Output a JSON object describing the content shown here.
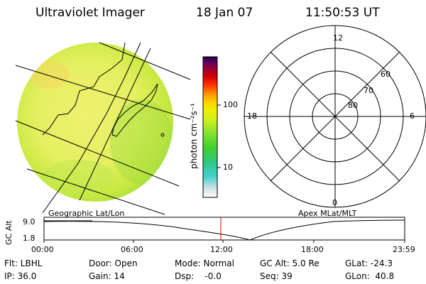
{
  "header": {
    "instrument": "Ultraviolet Imager",
    "date": "18 Jan 07",
    "time": "11:50:53 UT"
  },
  "colorbar": {
    "unit_label": "photon cm⁻²s⁻¹",
    "ticks": [
      {
        "label": "100",
        "value": 100
      },
      {
        "label": "10",
        "value": 10
      }
    ],
    "colors": [
      "#ffffff",
      "#c8e0e0",
      "#40d0d0",
      "#30c880",
      "#40d030",
      "#80e030",
      "#d0f020",
      "#f0f000",
      "#ffd000",
      "#ff9000",
      "#ff3000",
      "#d00000",
      "#a00030",
      "#600060",
      "#200040"
    ]
  },
  "geo_panel": {
    "label": "Geographic Lat/Lon"
  },
  "polar_panel": {
    "label": "Apex MLat/MLT",
    "mlt_labels": [
      {
        "text": "12",
        "pos": "top"
      },
      {
        "text": "18",
        "pos": "left"
      },
      {
        "text": "6",
        "pos": "right"
      },
      {
        "text": "0",
        "pos": "bottom"
      }
    ],
    "lat_labels": [
      "60",
      "70",
      "80"
    ]
  },
  "altitude_plot": {
    "ylabel": "GC Alt",
    "yticks": [
      "9.0",
      "1.8"
    ],
    "xticks": [
      "00:00",
      "06:00",
      "12:00",
      "18:00",
      "23:59"
    ],
    "current_time_marker": "11:50"
  },
  "info": {
    "row1": {
      "flt": "Flt: LBHL",
      "door": "Door: Open",
      "mode": "Mode: Normal",
      "gcalt": "GC Alt: 5.0 Re",
      "glat": "GLat: -24.3"
    },
    "row2": {
      "ip": "IP: 36.0",
      "gain": "Gain: 14",
      "dsp": "Dsp:    -0.0",
      "seq": "Seq: 39",
      "glon": "GLon:  40.8"
    }
  }
}
